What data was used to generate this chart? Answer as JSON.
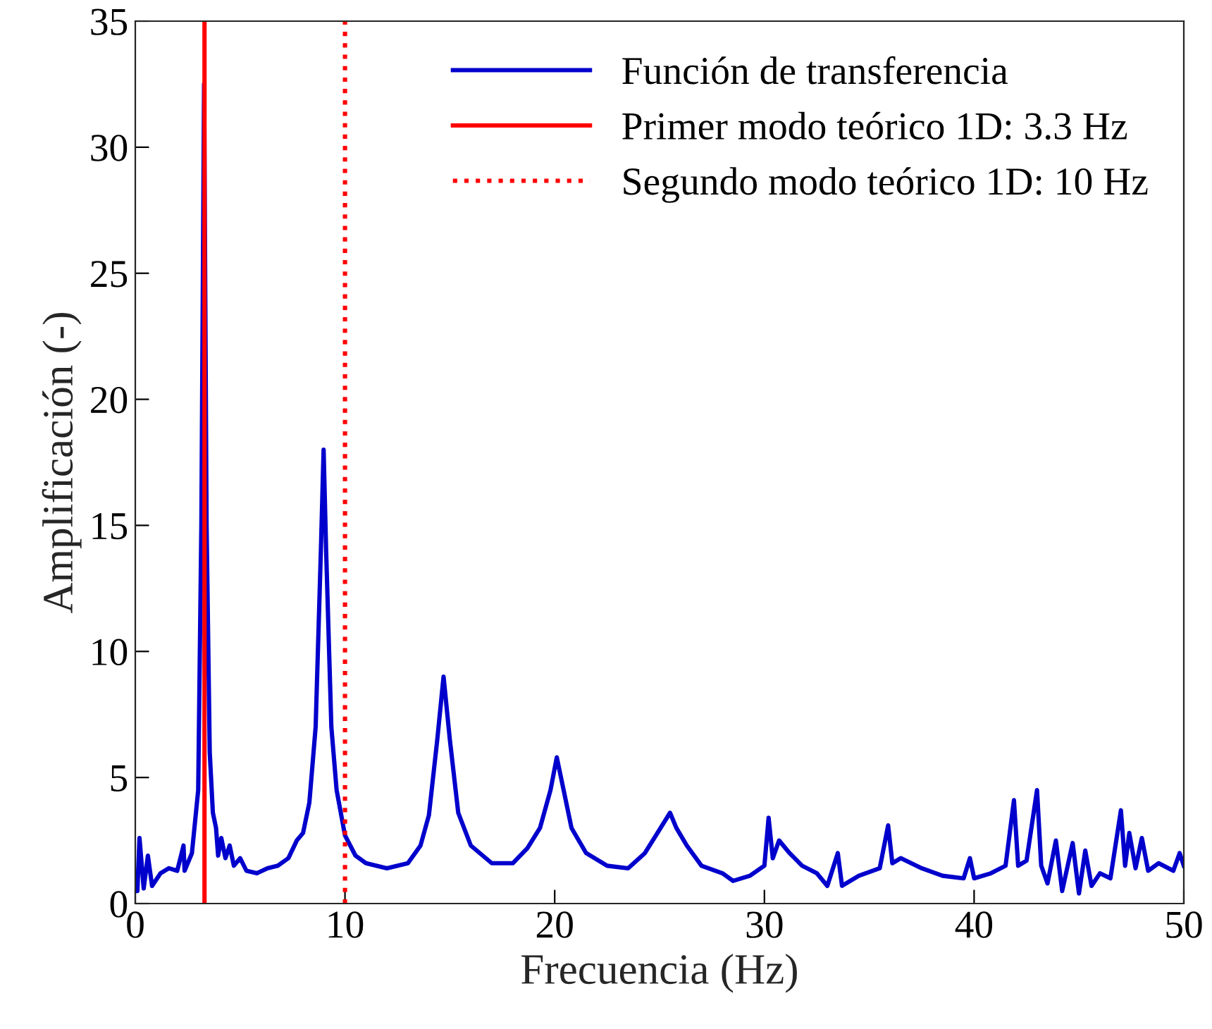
{
  "chart_data": {
    "type": "line",
    "xlabel": "Frecuencia (Hz)",
    "ylabel": "Amplificación (-)",
    "xlim": [
      0,
      50
    ],
    "ylim": [
      0,
      35
    ],
    "xticks": [
      0,
      10,
      20,
      30,
      40,
      50
    ],
    "yticks": [
      0,
      5,
      10,
      15,
      20,
      25,
      30,
      35
    ],
    "grid": false,
    "legend": "top right",
    "marker": "none",
    "line_style": "solid",
    "series": [
      {
        "name": "Función de transferencia",
        "color": "#0000cc",
        "x": [
          0,
          0.1,
          0.2,
          0.4,
          0.6,
          0.8,
          1.2,
          1.6,
          2,
          2.3,
          2.35,
          2.7,
          3.0,
          3.15,
          3.28,
          3.4,
          3.55,
          3.7,
          3.85,
          3.95,
          4.1,
          4.3,
          4.5,
          4.7,
          5,
          5.3,
          5.8,
          6.3,
          6.8,
          7.3,
          7.7,
          8.0,
          8.3,
          8.6,
          8.85,
          8.98,
          9.1,
          9.35,
          9.6,
          10,
          10.5,
          11,
          12,
          13,
          13.6,
          14.0,
          14.4,
          14.7,
          15.0,
          15.4,
          16,
          17,
          18,
          18.7,
          19.3,
          19.8,
          20.1,
          20.4,
          20.8,
          21.5,
          22.5,
          23.5,
          24.3,
          24.9,
          25.5,
          25.8,
          26.3,
          27,
          28,
          28.5,
          29.3,
          30,
          30.2,
          30.4,
          30.7,
          31.2,
          31.8,
          32.5,
          33,
          33.5,
          33.7,
          34.5,
          35.5,
          35.9,
          36.1,
          36.5,
          37.5,
          38.5,
          39.5,
          39.8,
          40,
          40.8,
          41.5,
          41.9,
          42.1,
          42.5,
          43.0,
          43.2,
          43.5,
          43.9,
          44.2,
          44.7,
          45,
          45.3,
          45.6,
          46,
          46.5,
          47,
          47.2,
          47.4,
          47.7,
          48,
          48.3,
          48.8,
          49.5,
          49.8,
          50
        ],
        "values": [
          0.5,
          0.5,
          2.6,
          0.6,
          1.9,
          0.7,
          1.2,
          1.4,
          1.3,
          2.3,
          1.3,
          2.0,
          4.5,
          15,
          32.5,
          15,
          6,
          3.6,
          3.0,
          1.9,
          2.6,
          1.8,
          2.3,
          1.5,
          1.8,
          1.3,
          1.2,
          1.4,
          1.5,
          1.8,
          2.5,
          2.8,
          4.0,
          7,
          14,
          18,
          14,
          7,
          4.5,
          2.7,
          1.9,
          1.6,
          1.4,
          1.6,
          2.3,
          3.5,
          6.5,
          9.0,
          6.5,
          3.6,
          2.3,
          1.6,
          1.6,
          2.2,
          3.0,
          4.5,
          5.8,
          4.6,
          3.0,
          2.0,
          1.5,
          1.4,
          2.0,
          2.8,
          3.6,
          3.0,
          2.3,
          1.5,
          1.2,
          0.9,
          1.1,
          1.5,
          3.4,
          1.8,
          2.5,
          2.0,
          1.5,
          1.2,
          0.7,
          2.0,
          0.7,
          1.1,
          1.4,
          3.1,
          1.6,
          1.8,
          1.4,
          1.1,
          1.0,
          1.8,
          1.0,
          1.2,
          1.5,
          4.1,
          1.5,
          1.7,
          4.5,
          1.5,
          0.8,
          2.5,
          0.5,
          2.4,
          0.4,
          2.1,
          0.7,
          1.2,
          1.0,
          3.7,
          1.5,
          2.8,
          1.4,
          2.6,
          1.3,
          1.6,
          1.3,
          2.0,
          1.5
        ]
      },
      {
        "name": "Primer modo teórico 1D: 3.3 Hz",
        "color": "#ff0000",
        "line_style": "solid",
        "x": [
          3.3,
          3.3
        ],
        "values": [
          0,
          35
        ]
      },
      {
        "name": "Segundo modo teórico 1D: 10 Hz",
        "color": "#ff0000",
        "line_style": "dotted",
        "x": [
          10,
          10
        ],
        "values": [
          0,
          35
        ]
      }
    ]
  }
}
